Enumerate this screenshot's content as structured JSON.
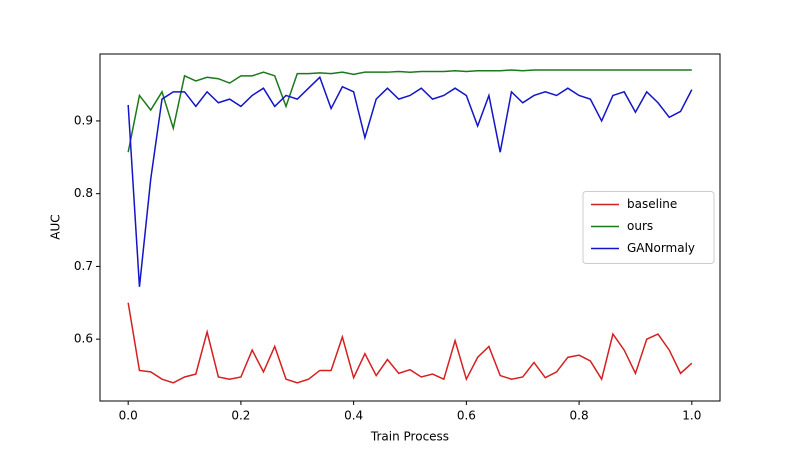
{
  "chart_data": {
    "type": "line",
    "xlabel": "Train Process",
    "ylabel": "AUC",
    "x": [
      0,
      0.02,
      0.04,
      0.06,
      0.08,
      0.1,
      0.12,
      0.14,
      0.16,
      0.18,
      0.2,
      0.22,
      0.24,
      0.26,
      0.28,
      0.3,
      0.32,
      0.34,
      0.36,
      0.38,
      0.4,
      0.42,
      0.44,
      0.46,
      0.48,
      0.5,
      0.52,
      0.54,
      0.56,
      0.58,
      0.6,
      0.62,
      0.64,
      0.66,
      0.68,
      0.7,
      0.72,
      0.74,
      0.76,
      0.78,
      0.8,
      0.82,
      0.84,
      0.86,
      0.88,
      0.9,
      0.92,
      0.94,
      0.96,
      0.98,
      1
    ],
    "series": [
      {
        "name": "baseline",
        "color": "#d62020",
        "values": [
          0.65,
          0.557,
          0.555,
          0.545,
          0.54,
          0.548,
          0.552,
          0.61,
          0.548,
          0.545,
          0.548,
          0.585,
          0.555,
          0.59,
          0.545,
          0.54,
          0.545,
          0.557,
          0.557,
          0.603,
          0.547,
          0.58,
          0.55,
          0.572,
          0.553,
          0.558,
          0.548,
          0.552,
          0.545,
          0.598,
          0.545,
          0.575,
          0.59,
          0.55,
          0.545,
          0.548,
          0.568,
          0.547,
          0.555,
          0.575,
          0.578,
          0.57,
          0.545,
          0.607,
          0.585,
          0.553,
          0.6,
          0.607,
          0.585,
          0.553,
          0.567
        ]
      },
      {
        "name": "ours",
        "color": "#1a7a1a",
        "values": [
          0.857,
          0.935,
          0.915,
          0.94,
          0.89,
          0.962,
          0.955,
          0.96,
          0.958,
          0.952,
          0.962,
          0.962,
          0.967,
          0.962,
          0.92,
          0.965,
          0.965,
          0.966,
          0.965,
          0.967,
          0.964,
          0.967,
          0.967,
          0.967,
          0.968,
          0.967,
          0.968,
          0.968,
          0.968,
          0.969,
          0.968,
          0.969,
          0.969,
          0.969,
          0.97,
          0.969,
          0.97,
          0.97,
          0.97,
          0.97,
          0.97,
          0.97,
          0.97,
          0.97,
          0.97,
          0.97,
          0.97,
          0.97,
          0.97,
          0.97,
          0.97
        ]
      },
      {
        "name": "GANormaly",
        "color": "#1414c8",
        "values": [
          0.922,
          0.672,
          0.82,
          0.93,
          0.94,
          0.94,
          0.92,
          0.94,
          0.925,
          0.93,
          0.92,
          0.935,
          0.945,
          0.92,
          0.935,
          0.93,
          0.945,
          0.96,
          0.917,
          0.947,
          0.94,
          0.877,
          0.93,
          0.945,
          0.93,
          0.935,
          0.945,
          0.93,
          0.935,
          0.945,
          0.935,
          0.893,
          0.935,
          0.857,
          0.94,
          0.925,
          0.935,
          0.94,
          0.935,
          0.945,
          0.935,
          0.93,
          0.9,
          0.935,
          0.94,
          0.912,
          0.94,
          0.925,
          0.905,
          0.913,
          0.943
        ]
      }
    ],
    "xlim": [
      -0.05,
      1.05
    ],
    "ylim": [
      0.515,
      0.992
    ],
    "xticks": [
      {
        "value": 0,
        "label": "0.0"
      },
      0.2,
      0.4,
      0.6,
      0.8,
      {
        "value": 1,
        "label": "1.0"
      }
    ],
    "yticks": [
      0.6,
      0.7,
      0.8,
      0.9
    ],
    "legend": "right"
  }
}
